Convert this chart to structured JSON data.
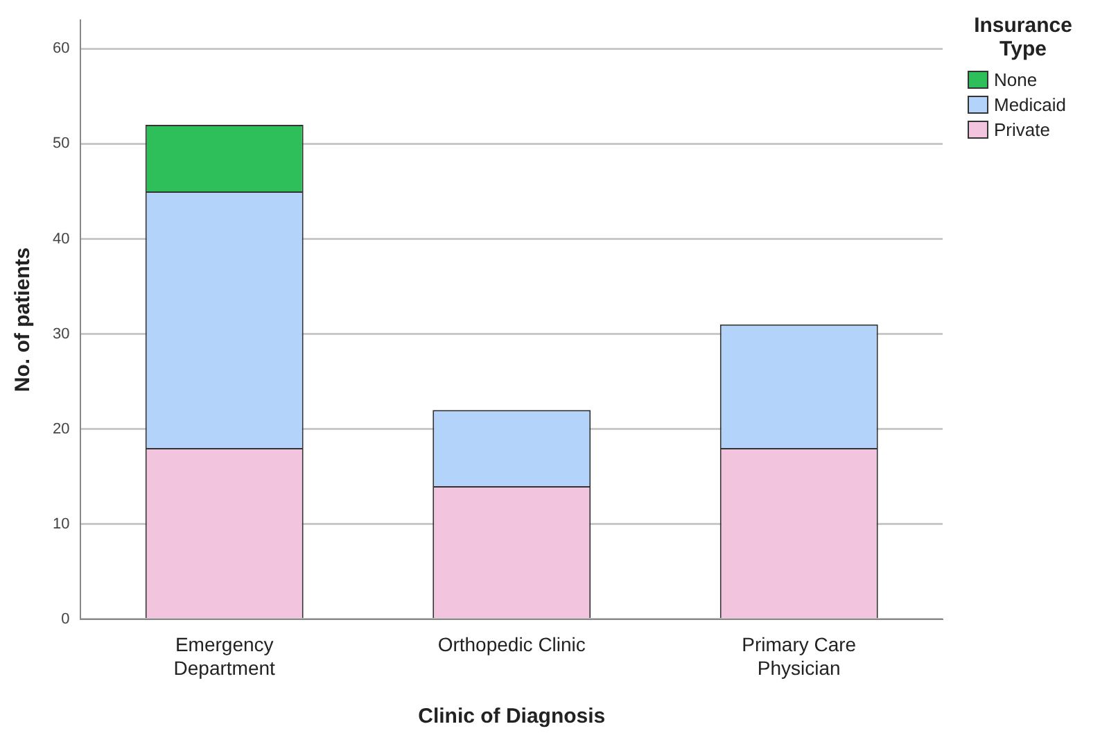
{
  "chart_data": {
    "type": "bar",
    "stacked": true,
    "xlabel": "Clinic of Diagnosis",
    "ylabel": "No. of patients",
    "legend_title": "Insurance Type",
    "legend": "top right",
    "grid": "y",
    "categories": [
      "Emergency Department",
      "Orthopedic Clinic",
      "Primary Care Physician"
    ],
    "series": [
      {
        "name": "Private",
        "color": "#f2c4de",
        "values": [
          18,
          14,
          18
        ]
      },
      {
        "name": "Medicaid",
        "color": "#b3d3fb",
        "values": [
          27,
          8,
          13
        ]
      },
      {
        "name": "None",
        "color": "#2fbf5a",
        "values": [
          7,
          null,
          null
        ]
      }
    ],
    "ylim": [
      0,
      63
    ],
    "yticks": [
      0,
      10,
      20,
      30,
      40,
      50,
      60
    ]
  }
}
